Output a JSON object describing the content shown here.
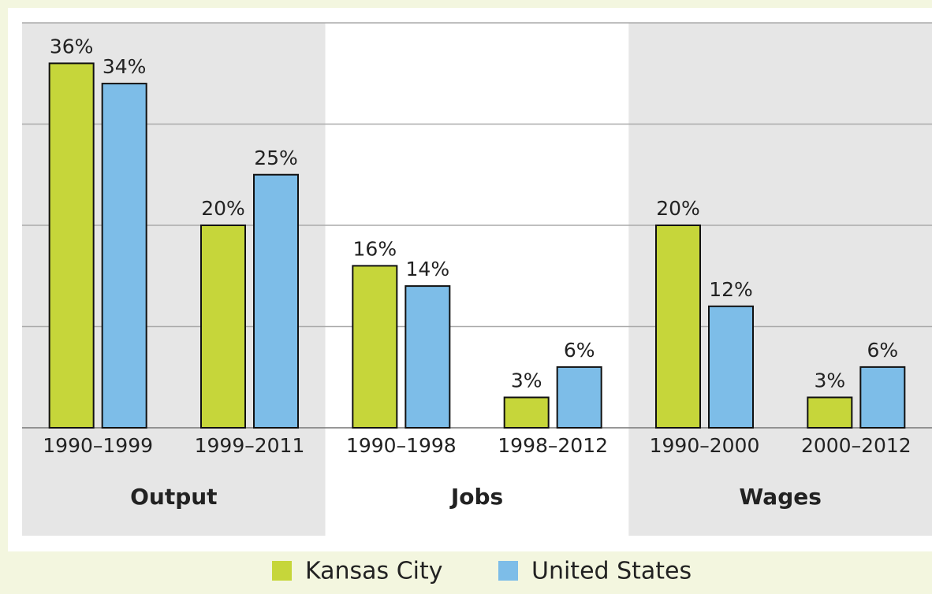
{
  "chart_data": {
    "type": "bar",
    "groups": [
      "Output",
      "Jobs",
      "Wages"
    ],
    "categories": [
      "1990–1999",
      "1999–2011",
      "1990–1998",
      "1998–2012",
      "1990–2000",
      "2000–2012"
    ],
    "series": [
      {
        "name": "Kansas City",
        "color": "#c6d63a",
        "values": [
          36,
          20,
          16,
          3,
          20,
          3
        ],
        "value_labels": [
          "36%",
          "20%",
          "16%",
          "3%",
          "20%",
          "3%"
        ]
      },
      {
        "name": "United States",
        "color": "#7dbde8",
        "values": [
          34,
          25,
          14,
          6,
          12,
          6
        ],
        "value_labels": [
          "34%",
          "25%",
          "14%",
          "6%",
          "12%",
          "6%"
        ]
      }
    ],
    "ylim": [
      0,
      40
    ],
    "yticks": [
      0,
      10,
      20,
      30,
      40
    ],
    "grid": true
  }
}
